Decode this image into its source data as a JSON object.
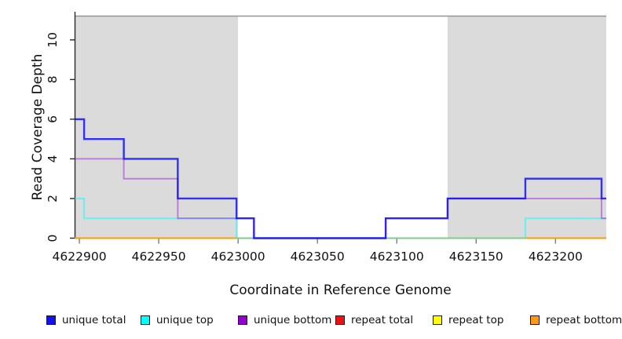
{
  "chart_data": {
    "type": "line",
    "subtype": "step",
    "title": "",
    "xlabel": "Coordinate in Reference Genome",
    "ylabel": "Read Coverage Depth",
    "xlim": [
      4622897,
      4623232
    ],
    "ylim": [
      0,
      11.2
    ],
    "x_ticks": [
      4622900,
      4622950,
      4623000,
      4623050,
      4623100,
      4623150,
      4623200
    ],
    "y_ticks": [
      0,
      2,
      4,
      6,
      8,
      10
    ],
    "grid": false,
    "legend_position": "bottom",
    "shaded_regions": [
      {
        "name": "repeat-region-left",
        "from": 4622897,
        "to": 4623000,
        "fill": "#dbdbdb"
      },
      {
        "name": "gap-region-middle",
        "from": 4623000,
        "to": 4623132,
        "fill": "#ffffff"
      },
      {
        "name": "repeat-region-right",
        "from": 4623132,
        "to": 4623232,
        "fill": "#dbdbdb"
      }
    ],
    "region_border_color": "#949494",
    "axis_color": "#2a2a2a",
    "series": [
      {
        "name": "unique total",
        "legend_color": "#1212ee",
        "line_color": "#0000ff",
        "line_opacity": 0.78,
        "line_width": 2.4,
        "points": [
          [
            4622897,
            6
          ],
          [
            4622903,
            5
          ],
          [
            4622928,
            4
          ],
          [
            4622962,
            2
          ],
          [
            4622999,
            1
          ],
          [
            4623010,
            0
          ],
          [
            4623093,
            1
          ],
          [
            4623132,
            2
          ],
          [
            4623181,
            3
          ],
          [
            4623229,
            2
          ]
        ]
      },
      {
        "name": "unique top",
        "legend_color": "#00ffff",
        "line_color": "#00ffff",
        "line_opacity": 0.5,
        "line_width": 2,
        "points": [
          [
            4622897,
            2
          ],
          [
            4622903,
            1
          ],
          [
            4622999,
            0
          ],
          [
            4623181,
            1
          ]
        ]
      },
      {
        "name": "unique bottom",
        "legend_color": "#9400d3",
        "line_color": "#9400d3",
        "line_opacity": 0.42,
        "line_width": 2,
        "points": [
          [
            4622897,
            4
          ],
          [
            4622928,
            3
          ],
          [
            4622962,
            1
          ],
          [
            4623010,
            0
          ],
          [
            4623093,
            1
          ],
          [
            4623132,
            2
          ],
          [
            4623229,
            1
          ]
        ]
      },
      {
        "name": "repeat total",
        "legend_color": "#ee1111",
        "line_color": "#dd0000",
        "line_opacity": 0.9,
        "line_width": 2,
        "points": [
          [
            4622897,
            0
          ]
        ]
      },
      {
        "name": "repeat top",
        "legend_color": "#ffff00",
        "line_color": "#ffff00",
        "line_opacity": 0.9,
        "line_width": 2,
        "points": [
          [
            4622897,
            0
          ]
        ]
      },
      {
        "name": "repeat bottom",
        "legend_color": "#ff9912",
        "line_color": "#ff8c00",
        "line_opacity": 0.85,
        "line_width": 2,
        "points": [
          [
            4622897,
            0
          ]
        ]
      }
    ],
    "draw_order": [
      "repeat total",
      "repeat top",
      "repeat bottom",
      "unique top",
      "unique bottom",
      "unique total"
    ]
  }
}
